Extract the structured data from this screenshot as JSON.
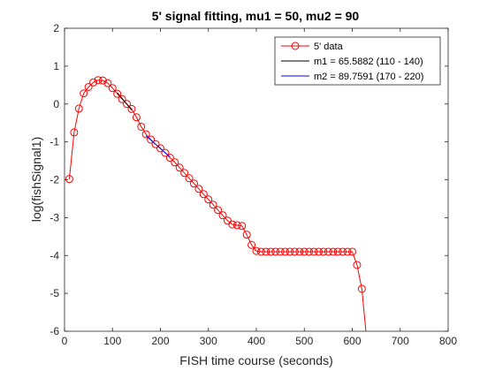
{
  "chart_data": {
    "type": "line",
    "title": "5' signal fitting, mu1 = 50, mu2 = 90",
    "xlabel": "FISH time course (seconds)",
    "ylabel": "log(fishSignal1)",
    "xlim": [
      0,
      800
    ],
    "ylim": [
      -6,
      2
    ],
    "xticks": [
      0,
      100,
      200,
      300,
      400,
      500,
      600,
      700,
      800
    ],
    "yticks": [
      -6,
      -5,
      -4,
      -3,
      -2,
      -1,
      0,
      1,
      2
    ],
    "grid": false,
    "legend_position": "top-right",
    "series": [
      {
        "name": "5' data",
        "color": "#ff0000",
        "marker": "circle",
        "x": [
          10,
          20,
          30,
          40,
          50,
          60,
          70,
          80,
          90,
          100,
          110,
          120,
          130,
          140,
          150,
          160,
          170,
          180,
          190,
          200,
          210,
          220,
          230,
          240,
          250,
          260,
          270,
          280,
          290,
          300,
          310,
          320,
          330,
          340,
          350,
          360,
          370,
          380,
          390,
          400,
          410,
          420,
          430,
          440,
          450,
          460,
          470,
          480,
          490,
          500,
          510,
          520,
          530,
          540,
          550,
          560,
          570,
          580,
          590,
          600,
          610,
          620,
          630
        ],
        "y": [
          -1.98,
          -0.75,
          -0.12,
          0.28,
          0.45,
          0.57,
          0.63,
          0.62,
          0.55,
          0.42,
          0.27,
          0.13,
          0.0,
          -0.13,
          -0.35,
          -0.6,
          -0.8,
          -0.94,
          -1.06,
          -1.17,
          -1.29,
          -1.42,
          -1.54,
          -1.68,
          -1.82,
          -1.96,
          -2.1,
          -2.24,
          -2.38,
          -2.52,
          -2.66,
          -2.8,
          -2.94,
          -3.08,
          -3.18,
          -3.2,
          -3.22,
          -3.45,
          -3.72,
          -3.88,
          -3.9,
          -3.9,
          -3.9,
          -3.9,
          -3.9,
          -3.9,
          -3.9,
          -3.9,
          -3.9,
          -3.9,
          -3.9,
          -3.9,
          -3.9,
          -3.9,
          -3.9,
          -3.9,
          -3.9,
          -3.9,
          -3.9,
          -3.9,
          -4.25,
          -4.88,
          -6.2
        ]
      },
      {
        "name": "m1 = 65.5882 (110 - 140)",
        "color": "#000000",
        "marker": "none",
        "x": [
          110,
          140
        ],
        "y": [
          0.3,
          -0.16
        ]
      },
      {
        "name": "m2 = 89.7591 (170 - 220)",
        "color": "#0000ff",
        "marker": "none",
        "x": [
          170,
          220
        ],
        "y": [
          -0.84,
          -1.4
        ]
      }
    ]
  }
}
